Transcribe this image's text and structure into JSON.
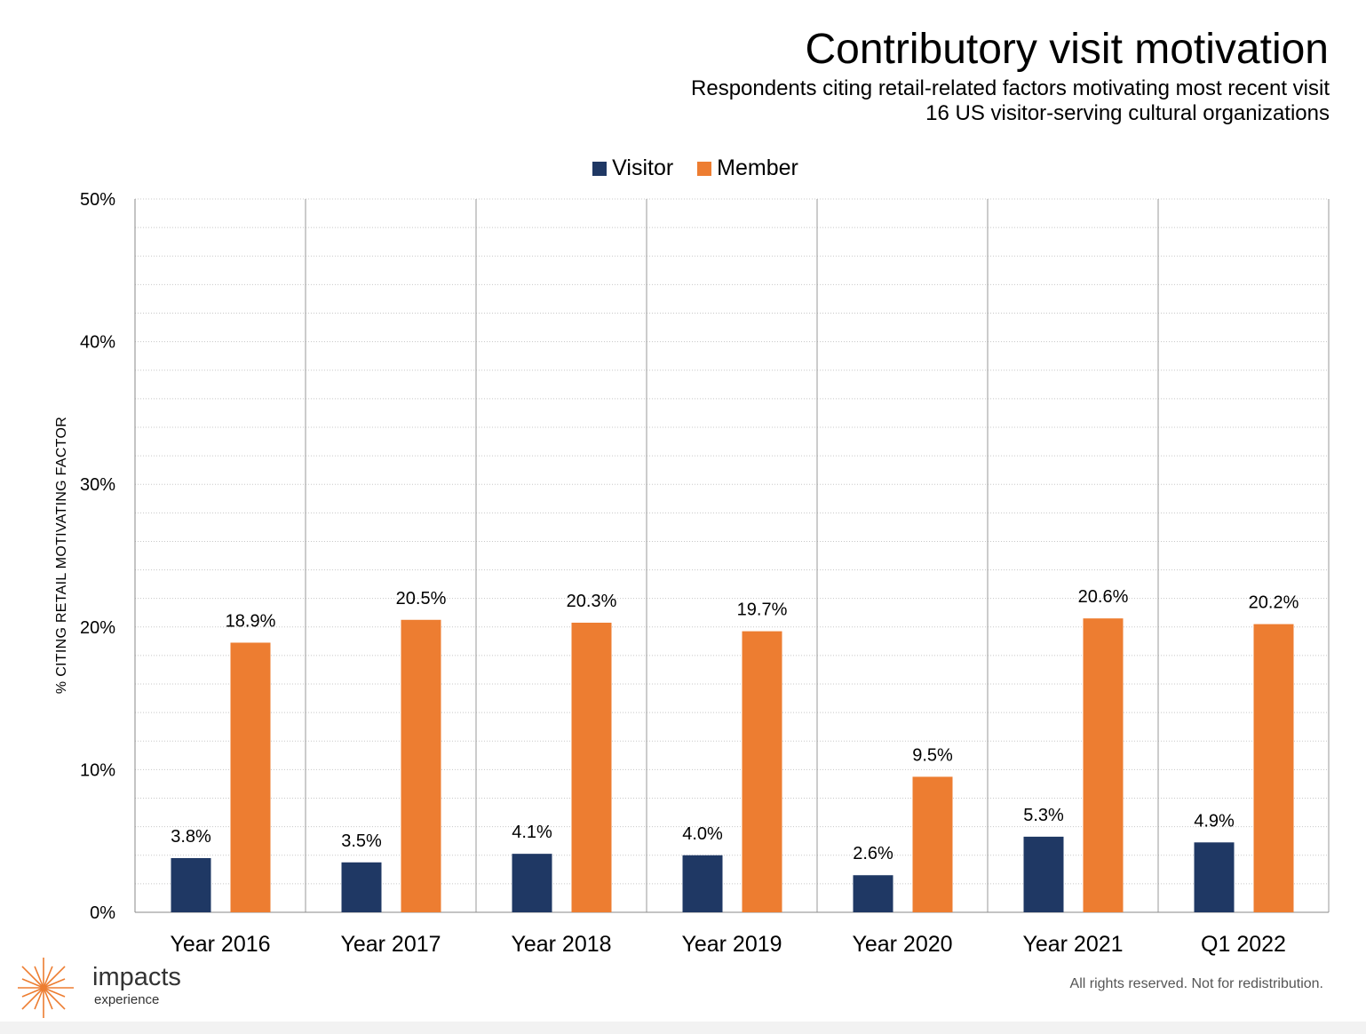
{
  "title": "Contributory visit motivation",
  "subtitle1": "Respondents citing retail-related factors motivating most recent visit",
  "subtitle2": "16 US visitor-serving cultural organizations",
  "footer": "All rights reserved. Not for redistribution.",
  "logo": {
    "name": "impacts",
    "tagline": "experience"
  },
  "colors": {
    "visitor": "#1f3864",
    "member": "#ed7d31",
    "grid": "#bdbdbd"
  },
  "chart_data": {
    "type": "bar",
    "ylabel": "% CITING RETAIL MOTIVATING FACTOR",
    "xlabel": "",
    "ylim": [
      0,
      50
    ],
    "ytick_labels": [
      "0%",
      "10%",
      "20%",
      "30%",
      "40%",
      "50%"
    ],
    "legend_position": "top-center",
    "grid": true,
    "categories": [
      "Year 2016",
      "Year 2017",
      "Year 2018",
      "Year 2019",
      "Year 2020",
      "Year 2021",
      "Q1 2022"
    ],
    "series": [
      {
        "name": "Visitor",
        "values": [
          3.8,
          3.5,
          4.1,
          4.0,
          2.6,
          5.3,
          4.9
        ],
        "labels": [
          "3.8%",
          "3.5%",
          "4.1%",
          "4.0%",
          "2.6%",
          "5.3%",
          "4.9%"
        ]
      },
      {
        "name": "Member",
        "values": [
          18.9,
          20.5,
          20.3,
          19.7,
          9.5,
          20.6,
          20.2
        ],
        "labels": [
          "18.9%",
          "20.5%",
          "20.3%",
          "19.7%",
          "9.5%",
          "20.6%",
          "20.2%"
        ]
      }
    ]
  }
}
